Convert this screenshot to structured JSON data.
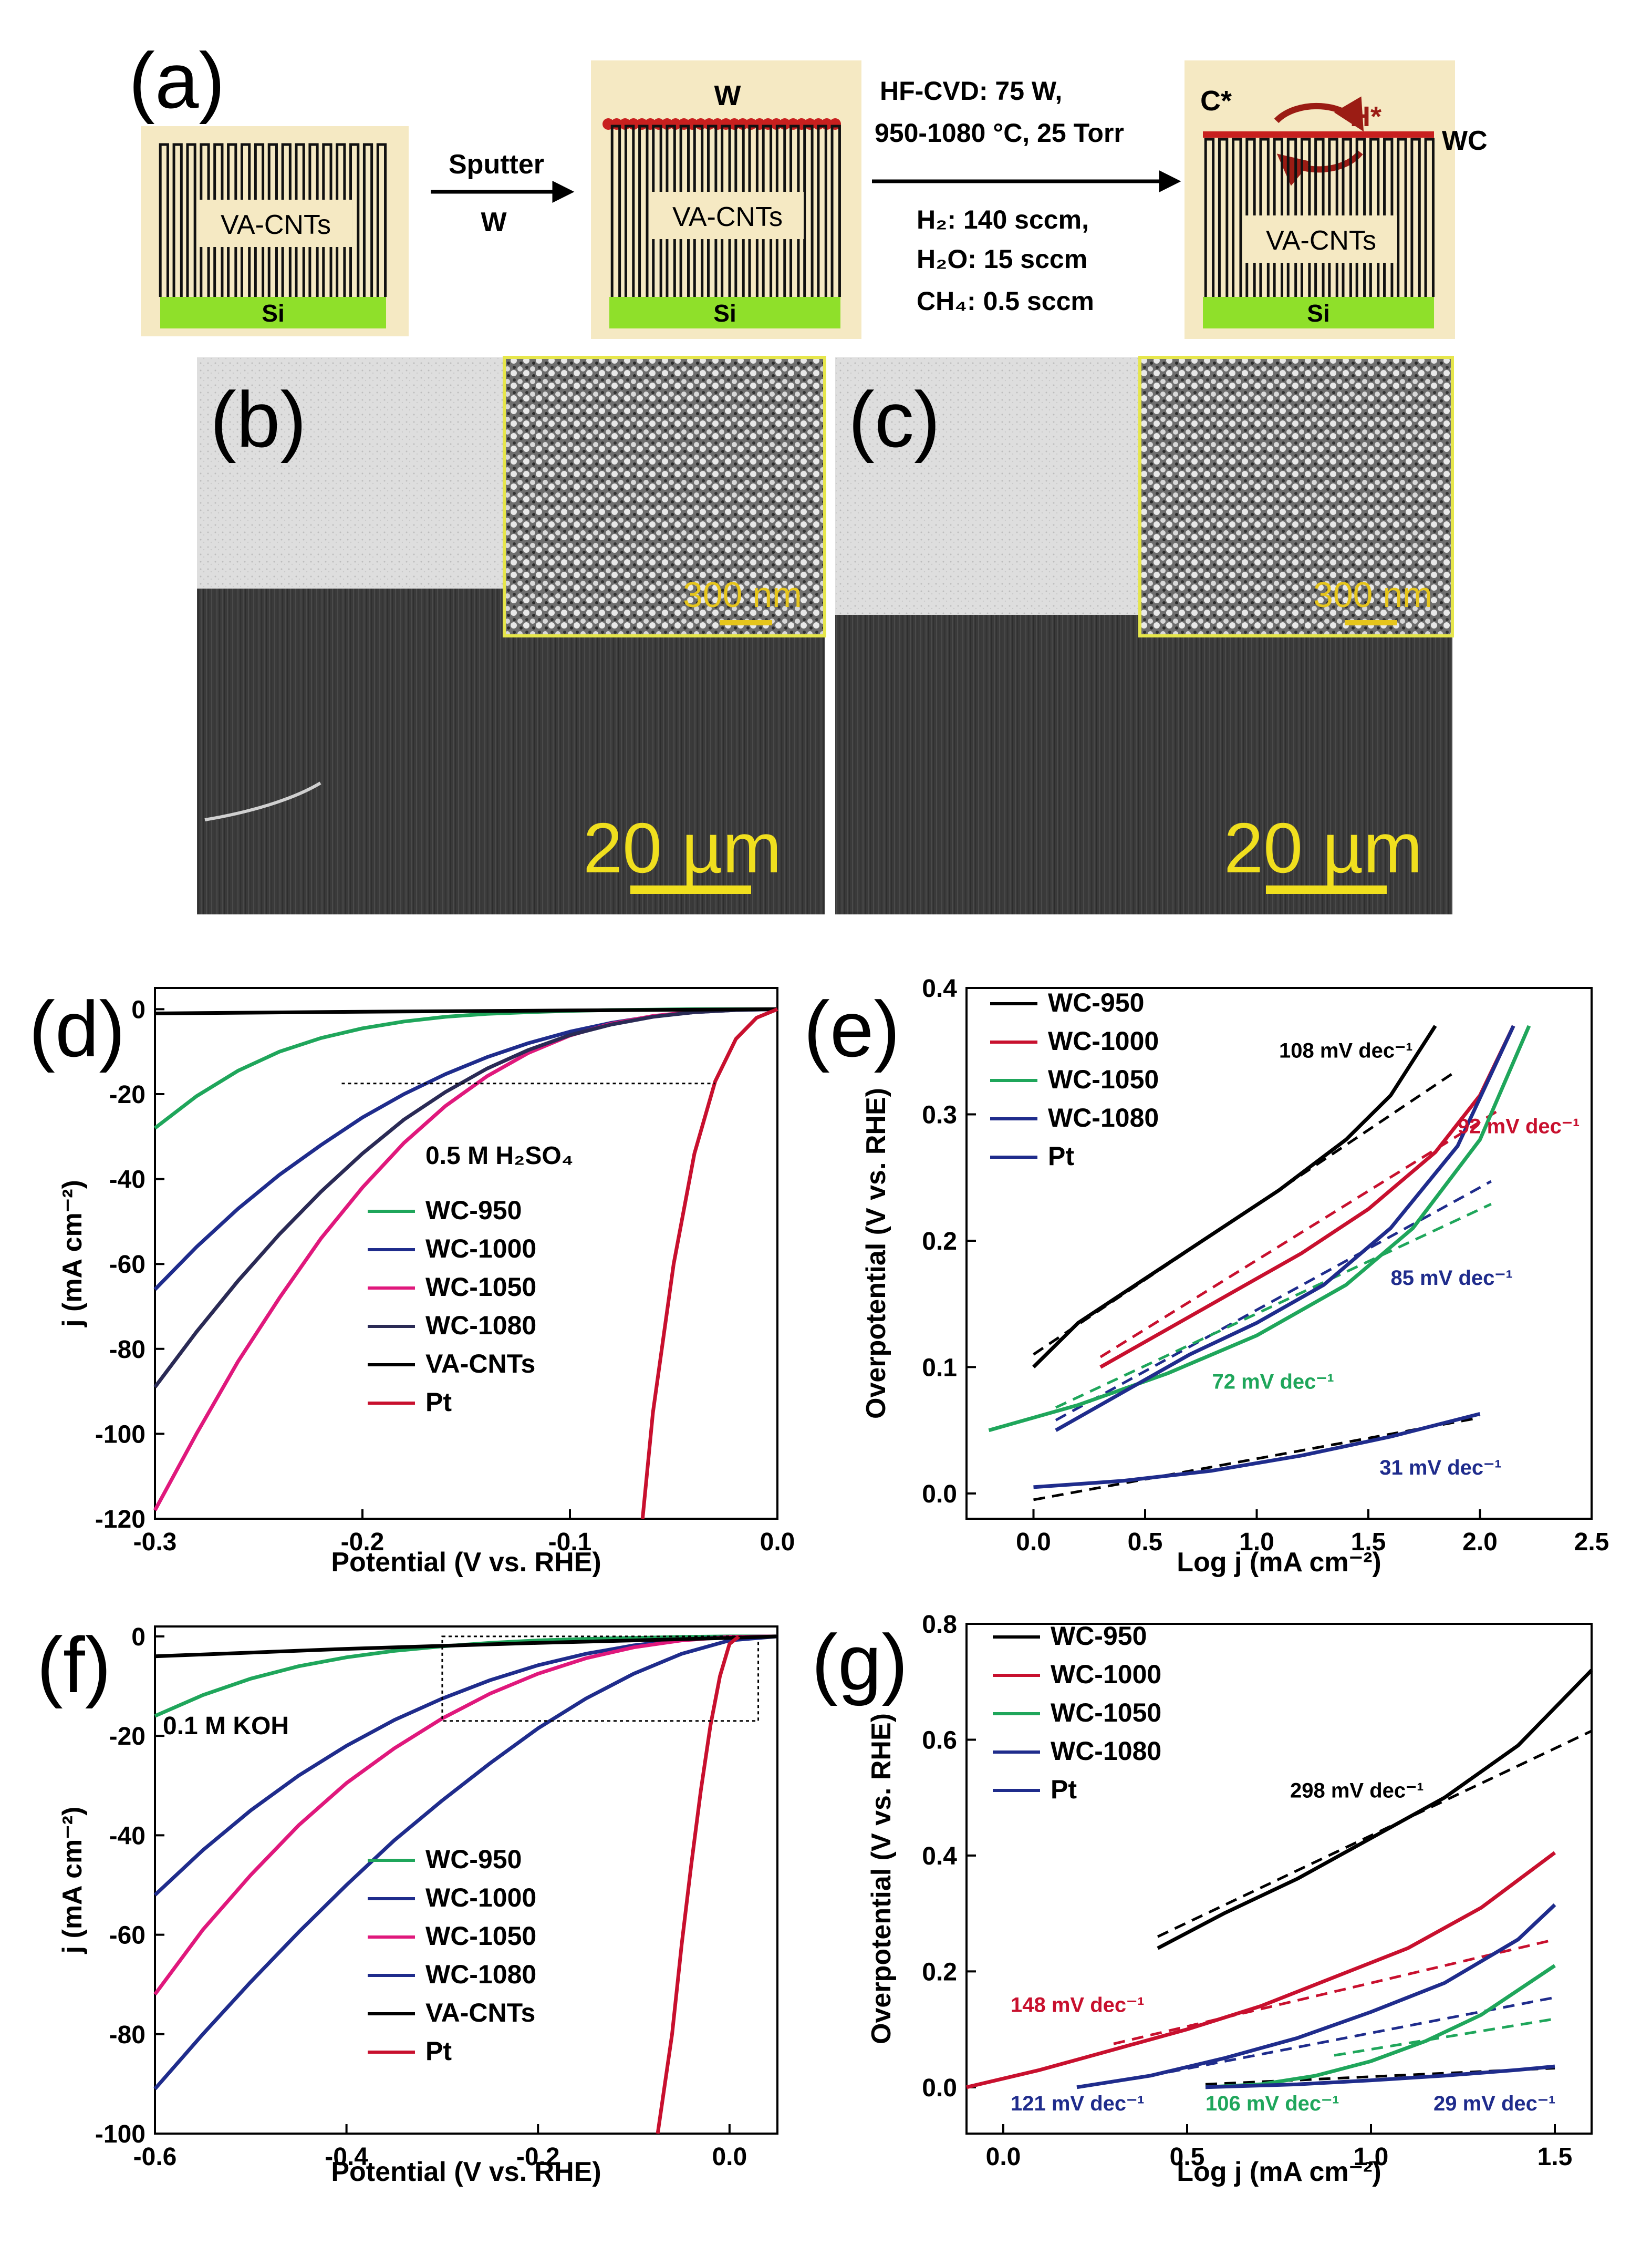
{
  "panel_a": {
    "label": "(a)",
    "box1": {
      "vacnt": "VA-CNTs",
      "si": "Si"
    },
    "arrow1": {
      "top": "Sputter",
      "bottom": "W"
    },
    "box2": {
      "top": "W",
      "vacnt": "VA-CNTs",
      "si": "Si"
    },
    "arrow2": {
      "line1": "HF-CVD: 75 W,",
      "line2": "950-1080 °C, 25 Torr",
      "line3": "H₂: 140 sccm,",
      "line4": "H₂O: 15 sccm",
      "line5": "CH₄: 0.5 sccm"
    },
    "box3": {
      "c_star": "C*",
      "h_star": "H*",
      "wc": "WC",
      "vacnt": "VA-CNTs",
      "si": "Si"
    },
    "colors": {
      "box_bg": "#f5e9c3",
      "si": "#8fe02a",
      "wc_dots": "#c8201f",
      "arrow": "#9b1c14"
    }
  },
  "panel_b": {
    "label": "(b)",
    "inset_scale": "300 nm",
    "scale": "20 µm"
  },
  "panel_c": {
    "label": "(c)",
    "inset_scale": "300 nm",
    "scale": "20 µm"
  },
  "chart_data": [
    {
      "id": "d",
      "panel_label": "(d)",
      "type": "line",
      "xlabel": "Potential (V vs. RHE)",
      "ylabel": "j (mA cm⁻²)",
      "xlim": [
        -0.3,
        0.0
      ],
      "ylim": [
        -120,
        5
      ],
      "xticks": [
        -0.3,
        -0.2,
        -0.1,
        0.0
      ],
      "xtick_labels": [
        "-0.3",
        "-0.2",
        "-0.1",
        "0.0"
      ],
      "yticks": [
        0,
        -20,
        -40,
        -60,
        -80,
        -100,
        -120
      ],
      "ytick_labels": [
        "0",
        "-20",
        "-40",
        "-60",
        "-80",
        "-100",
        "-120"
      ],
      "annotation": "0.5 M H₂SO₄",
      "legend": [
        "WC-950",
        "WC-1000",
        "WC-1050",
        "WC-1080",
        "VA-CNTs",
        "Pt"
      ],
      "series": [
        {
          "name": "WC-950",
          "color": "#1fa65b",
          "x": [
            -0.3,
            -0.28,
            -0.26,
            -0.24,
            -0.22,
            -0.2,
            -0.18,
            -0.16,
            -0.14,
            -0.12,
            -0.1,
            -0.08,
            -0.06,
            -0.04,
            -0.02,
            0.0
          ],
          "y": [
            -28,
            -20.5,
            -14.5,
            -10,
            -6.8,
            -4.5,
            -2.9,
            -1.8,
            -1.1,
            -0.7,
            -0.4,
            -0.2,
            -0.1,
            0,
            0,
            0
          ]
        },
        {
          "name": "WC-1000",
          "color": "#1f2c8c",
          "x": [
            -0.3,
            -0.28,
            -0.26,
            -0.24,
            -0.22,
            -0.2,
            -0.18,
            -0.16,
            -0.14,
            -0.12,
            -0.1,
            -0.08,
            -0.06,
            -0.04,
            -0.02,
            0.0
          ],
          "y": [
            -66,
            -56,
            -47,
            -39,
            -32,
            -25.5,
            -20,
            -15.3,
            -11.3,
            -8,
            -5.3,
            -3.2,
            -1.7,
            -0.7,
            -0.2,
            0
          ]
        },
        {
          "name": "WC-1050",
          "color": "#e0187c",
          "x": [
            -0.3,
            -0.28,
            -0.26,
            -0.24,
            -0.22,
            -0.2,
            -0.18,
            -0.16,
            -0.14,
            -0.12,
            -0.1,
            -0.08,
            -0.06,
            -0.04,
            -0.02,
            0.0
          ],
          "y": [
            -118,
            -100,
            -83,
            -68,
            -54,
            -42,
            -31.5,
            -22.8,
            -15.8,
            -10.3,
            -6.2,
            -3.4,
            -1.6,
            -0.6,
            -0.1,
            0
          ]
        },
        {
          "name": "WC-1080",
          "color": "#2a2a55",
          "x": [
            -0.3,
            -0.28,
            -0.26,
            -0.24,
            -0.22,
            -0.2,
            -0.18,
            -0.16,
            -0.14,
            -0.12,
            -0.1,
            -0.08,
            -0.06,
            -0.04,
            -0.02,
            0.0
          ],
          "y": [
            -89,
            -76,
            -64,
            -53,
            -43,
            -34,
            -26,
            -19.5,
            -14,
            -9.6,
            -6.1,
            -3.6,
            -1.8,
            -0.7,
            -0.2,
            0
          ]
        },
        {
          "name": "VA-CNTs",
          "color": "#000000",
          "x": [
            -0.3,
            -0.2,
            -0.1,
            0.0
          ],
          "y": [
            -1,
            -0.6,
            -0.3,
            0
          ]
        },
        {
          "name": "Pt",
          "color": "#c8102e",
          "x": [
            -0.065,
            -0.06,
            -0.05,
            -0.04,
            -0.03,
            -0.02,
            -0.01,
            0.0
          ],
          "y": [
            -120,
            -95,
            -60,
            -34,
            -17,
            -7,
            -2,
            0
          ]
        }
      ]
    },
    {
      "id": "e",
      "panel_label": "(e)",
      "type": "line",
      "xlabel": "Log j (mA cm⁻²)",
      "ylabel": "Overpotential (V vs. RHE)",
      "xlim": [
        -0.3,
        2.5
      ],
      "ylim": [
        -0.02,
        0.4
      ],
      "xticks": [
        0,
        0.5,
        1.0,
        1.5,
        2.0,
        2.5
      ],
      "xtick_labels": [
        "0.0",
        "0.5",
        "1.0",
        "1.5",
        "2.0",
        "2.5"
      ],
      "yticks": [
        0,
        0.1,
        0.2,
        0.3,
        0.4
      ],
      "ytick_labels": [
        "0.0",
        "0.1",
        "0.2",
        "0.3",
        "0.4"
      ],
      "legend": [
        "WC-950",
        "WC-1000",
        "WC-1050",
        "WC-1080",
        "Pt"
      ],
      "tafel_labels": [
        {
          "text": "108 mV dec⁻¹",
          "color": "#000000",
          "x": 1.1,
          "y": 0.345
        },
        {
          "text": "92 mV dec⁻¹",
          "color": "#c8102e",
          "x": 1.9,
          "y": 0.285
        },
        {
          "text": "85 mV dec⁻¹",
          "color": "#1f2c8c",
          "x": 1.6,
          "y": 0.165
        },
        {
          "text": "72 mV dec⁻¹",
          "color": "#1fa65b",
          "x": 0.8,
          "y": 0.083
        },
        {
          "text": "31 mV dec⁻¹",
          "color": "#1f2c8c",
          "x": 1.55,
          "y": 0.015
        }
      ],
      "series": [
        {
          "name": "WC-950",
          "color": "#000000",
          "x": [
            0.0,
            0.2,
            0.5,
            0.8,
            1.1,
            1.4,
            1.6,
            1.8
          ],
          "y": [
            0.1,
            0.135,
            0.17,
            0.205,
            0.24,
            0.28,
            0.315,
            0.37
          ]
        },
        {
          "name": "WC-1000",
          "color": "#c8102e",
          "x": [
            0.3,
            0.6,
            0.9,
            1.2,
            1.5,
            1.8,
            2.0,
            2.15
          ],
          "y": [
            0.1,
            0.13,
            0.16,
            0.19,
            0.225,
            0.27,
            0.315,
            0.37
          ]
        },
        {
          "name": "WC-1050",
          "color": "#1fa65b",
          "x": [
            -0.2,
            0.2,
            0.6,
            1.0,
            1.4,
            1.7,
            2.0,
            2.22
          ],
          "y": [
            0.05,
            0.07,
            0.095,
            0.125,
            0.165,
            0.21,
            0.28,
            0.37
          ]
        },
        {
          "name": "WC-1080",
          "color": "#1f2c8c",
          "x": [
            0.1,
            0.4,
            0.7,
            1.0,
            1.3,
            1.6,
            1.9,
            2.15
          ],
          "y": [
            0.05,
            0.08,
            0.11,
            0.135,
            0.165,
            0.21,
            0.275,
            0.37
          ]
        },
        {
          "name": "Pt",
          "color": "#1f2c8c",
          "x": [
            0.0,
            0.4,
            0.8,
            1.2,
            1.6,
            2.0
          ],
          "y": [
            0.005,
            0.01,
            0.018,
            0.03,
            0.045,
            0.063
          ]
        }
      ],
      "tafel_fits": [
        {
          "color": "#000000",
          "x": [
            0.0,
            1.9
          ],
          "y": [
            0.11,
            0.335
          ]
        },
        {
          "color": "#c8102e",
          "x": [
            0.3,
            2.1
          ],
          "y": [
            0.108,
            0.305
          ]
        },
        {
          "color": "#1f2c8c",
          "x": [
            0.1,
            2.05
          ],
          "y": [
            0.058,
            0.247
          ]
        },
        {
          "color": "#1fa65b",
          "x": [
            0.1,
            2.05
          ],
          "y": [
            0.068,
            0.229
          ]
        },
        {
          "color": "#000000",
          "x": [
            0.0,
            2.0
          ],
          "y": [
            -0.005,
            0.06
          ]
        }
      ]
    },
    {
      "id": "f",
      "panel_label": "(f)",
      "type": "line",
      "xlabel": "Potential (V vs. RHE)",
      "ylabel": "j (mA cm⁻²)",
      "xlim": [
        -0.6,
        0.05
      ],
      "ylim": [
        -100,
        2
      ],
      "xticks": [
        -0.6,
        -0.4,
        -0.2,
        0.0
      ],
      "xtick_labels": [
        "-0.6",
        "-0.4",
        "-0.2",
        "0.0"
      ],
      "yticks": [
        0,
        -20,
        -40,
        -60,
        -80,
        -100
      ],
      "ytick_labels": [
        "0",
        "-20",
        "-40",
        "-60",
        "-80",
        "-100"
      ],
      "annotation": "0.1 M KOH",
      "legend": [
        "WC-950",
        "WC-1000",
        "WC-1050",
        "WC-1080",
        "VA-CNTs",
        "Pt"
      ],
      "series": [
        {
          "name": "WC-950",
          "color": "#1fa65b",
          "x": [
            -0.6,
            -0.55,
            -0.5,
            -0.45,
            -0.4,
            -0.35,
            -0.3,
            -0.25,
            -0.2,
            -0.15,
            -0.1,
            -0.05,
            0.0,
            0.05
          ],
          "y": [
            -16,
            -11.8,
            -8.5,
            -6,
            -4.2,
            -2.9,
            -2,
            -1.3,
            -0.8,
            -0.5,
            -0.3,
            -0.1,
            0,
            0
          ]
        },
        {
          "name": "WC-1000",
          "color": "#1f2c8c",
          "x": [
            -0.6,
            -0.55,
            -0.5,
            -0.45,
            -0.4,
            -0.35,
            -0.3,
            -0.25,
            -0.2,
            -0.15,
            -0.1,
            -0.05,
            0.0,
            0.05
          ],
          "y": [
            -52,
            -43,
            -35,
            -28,
            -22,
            -16.8,
            -12.5,
            -8.8,
            -5.8,
            -3.5,
            -1.8,
            -0.7,
            -0.1,
            0
          ]
        },
        {
          "name": "WC-1050",
          "color": "#e0187c",
          "x": [
            -0.6,
            -0.55,
            -0.5,
            -0.45,
            -0.4,
            -0.35,
            -0.3,
            -0.25,
            -0.2,
            -0.15,
            -0.1,
            -0.05,
            0.0,
            0.05
          ],
          "y": [
            -72,
            -59,
            -48,
            -38,
            -29.5,
            -22.5,
            -16.5,
            -11.5,
            -7.5,
            -4.4,
            -2.2,
            -0.8,
            -0.1,
            0
          ]
        },
        {
          "name": "WC-1080",
          "color": "#1f2c8c",
          "x": [
            -0.6,
            -0.55,
            -0.5,
            -0.45,
            -0.4,
            -0.35,
            -0.3,
            -0.25,
            -0.2,
            -0.15,
            -0.1,
            -0.05,
            0.0,
            0.05
          ],
          "y": [
            -91,
            -80,
            -69.5,
            -59.5,
            -50,
            -41,
            -33,
            -25.5,
            -18.5,
            -12.5,
            -7.5,
            -3.5,
            -0.8,
            0
          ]
        },
        {
          "name": "VA-CNTs",
          "color": "#000000",
          "x": [
            -0.6,
            -0.4,
            -0.2,
            0.0,
            0.05
          ],
          "y": [
            -4,
            -2.5,
            -1.3,
            -0.3,
            0
          ]
        },
        {
          "name": "Pt",
          "color": "#c8102e",
          "x": [
            -0.075,
            -0.06,
            -0.05,
            -0.04,
            -0.03,
            -0.02,
            -0.01,
            0.0,
            0.01
          ],
          "y": [
            -100,
            -80,
            -62,
            -46,
            -31,
            -18,
            -8,
            -1.5,
            0
          ]
        }
      ]
    },
    {
      "id": "g",
      "panel_label": "(g)",
      "type": "line",
      "xlabel": "Log j (mA cm⁻²)",
      "ylabel": "Overpotential (V vs. RHE)",
      "xlim": [
        -0.1,
        1.6
      ],
      "ylim": [
        -0.08,
        0.8
      ],
      "xticks": [
        0,
        0.5,
        1.0,
        1.5
      ],
      "xtick_labels": [
        "0.0",
        "0.5",
        "1.0",
        "1.5"
      ],
      "yticks": [
        0,
        0.2,
        0.4,
        0.6,
        0.8
      ],
      "ytick_labels": [
        "0.0",
        "0.2",
        "0.4",
        "0.6",
        "0.8"
      ],
      "legend": [
        "WC-950",
        "WC-1000",
        "WC-1050",
        "WC-1080",
        "Pt"
      ],
      "tafel_labels": [
        {
          "text": "298 mV dec⁻¹",
          "color": "#000000",
          "x": 0.78,
          "y": 0.5
        },
        {
          "text": "148 mV dec⁻¹",
          "color": "#c8102e",
          "x": 0.02,
          "y": 0.13
        },
        {
          "text": "121 mV dec⁻¹",
          "color": "#1f2c8c",
          "x": 0.02,
          "y": -0.04
        },
        {
          "text": "106 mV dec⁻¹",
          "color": "#1fa65b",
          "x": 0.55,
          "y": -0.04
        },
        {
          "text": "29 mV dec⁻¹",
          "color": "#1f2c8c",
          "x": 1.17,
          "y": -0.04
        }
      ],
      "series": [
        {
          "name": "WC-950",
          "color": "#000000",
          "x": [
            0.42,
            0.6,
            0.8,
            1.0,
            1.2,
            1.4,
            1.6
          ],
          "y": [
            0.24,
            0.3,
            0.36,
            0.43,
            0.5,
            0.59,
            0.72
          ]
        },
        {
          "name": "WC-1000",
          "color": "#c8102e",
          "x": [
            -0.1,
            0.1,
            0.3,
            0.5,
            0.7,
            0.9,
            1.1,
            1.3,
            1.5
          ],
          "y": [
            0.0,
            0.03,
            0.065,
            0.1,
            0.14,
            0.19,
            0.24,
            0.31,
            0.405
          ]
        },
        {
          "name": "WC-1050",
          "color": "#1fa65b",
          "x": [
            0.55,
            0.7,
            0.85,
            1.0,
            1.15,
            1.3,
            1.5
          ],
          "y": [
            0.0,
            0.005,
            0.02,
            0.045,
            0.08,
            0.125,
            0.21
          ]
        },
        {
          "name": "WC-1080",
          "color": "#1f2c8c",
          "x": [
            0.2,
            0.4,
            0.6,
            0.8,
            1.0,
            1.2,
            1.4,
            1.5
          ],
          "y": [
            0.0,
            0.02,
            0.05,
            0.085,
            0.13,
            0.18,
            0.255,
            0.315
          ]
        },
        {
          "name": "Pt",
          "color": "#1f2c8c",
          "x": [
            0.55,
            0.8,
            1.0,
            1.2,
            1.4,
            1.5
          ],
          "y": [
            0.0,
            0.005,
            0.012,
            0.02,
            0.03,
            0.036
          ]
        }
      ],
      "tafel_fits": [
        {
          "color": "#000000",
          "x": [
            0.42,
            1.6
          ],
          "y": [
            0.26,
            0.615
          ]
        },
        {
          "color": "#c8102e",
          "x": [
            0.3,
            1.5
          ],
          "y": [
            0.075,
            0.255
          ]
        },
        {
          "color": "#1f2c8c",
          "x": [
            0.4,
            1.5
          ],
          "y": [
            0.02,
            0.155
          ]
        },
        {
          "color": "#1fa65b",
          "x": [
            0.9,
            1.5
          ],
          "y": [
            0.055,
            0.118
          ]
        },
        {
          "color": "#000000",
          "x": [
            0.55,
            1.5
          ],
          "y": [
            0.005,
            0.033
          ]
        }
      ]
    }
  ]
}
